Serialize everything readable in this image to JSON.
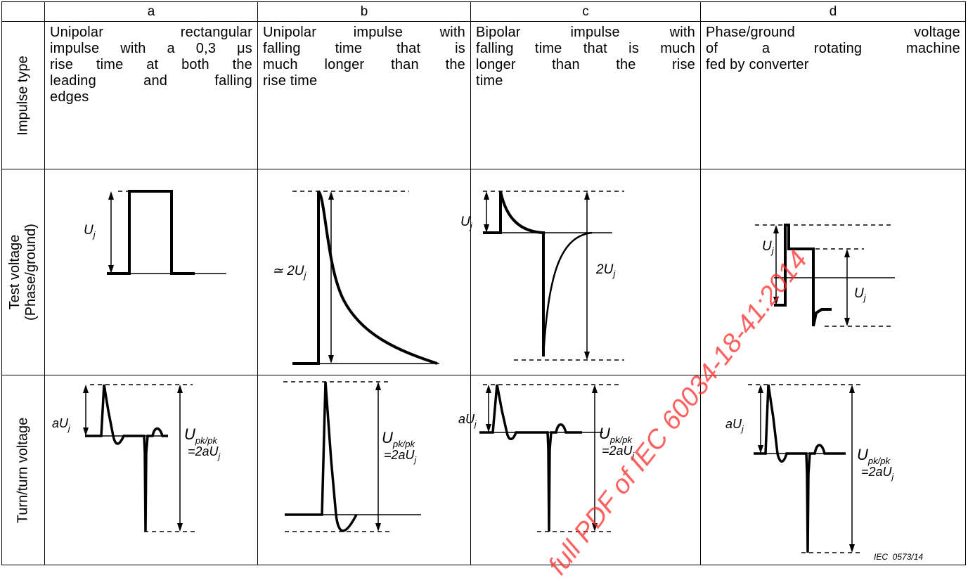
{
  "columns": [
    "a",
    "b",
    "c",
    "d"
  ],
  "row_labels": {
    "impulse_type": "Impulse type",
    "test_voltage": [
      "Test voltage",
      "(Phase/ground)"
    ],
    "turn_voltage": "Turn/turn voltage"
  },
  "impulse_types": {
    "a": [
      "Unipolar rectangular",
      "impulse with a 0,3 μs",
      "rise time at both the",
      "leading and falling",
      "edges"
    ],
    "b": [
      "Unipolar impulse with",
      "falling time that is",
      "much longer than the",
      "rise time"
    ],
    "c": [
      "Bipolar impulse with",
      "falling time that is much",
      "longer than the rise",
      "time"
    ],
    "d": [
      "Phase/ground voltage",
      "of a rotating machine",
      "fed by converter"
    ]
  },
  "labels": {
    "U": "U",
    "j": "j",
    "approx_2Uj_prefix": "≃ 2",
    "two_Uj_prefix": "2",
    "aUj_prefix": "aU",
    "Upkpk_main": "U",
    "Upkpk_sub": "pk/pk",
    "eq_2aUj": "=2aU"
  },
  "figure_id": "IEC  0573/14",
  "watermark": "full PDF of IEC 60034-18-41:2014"
}
